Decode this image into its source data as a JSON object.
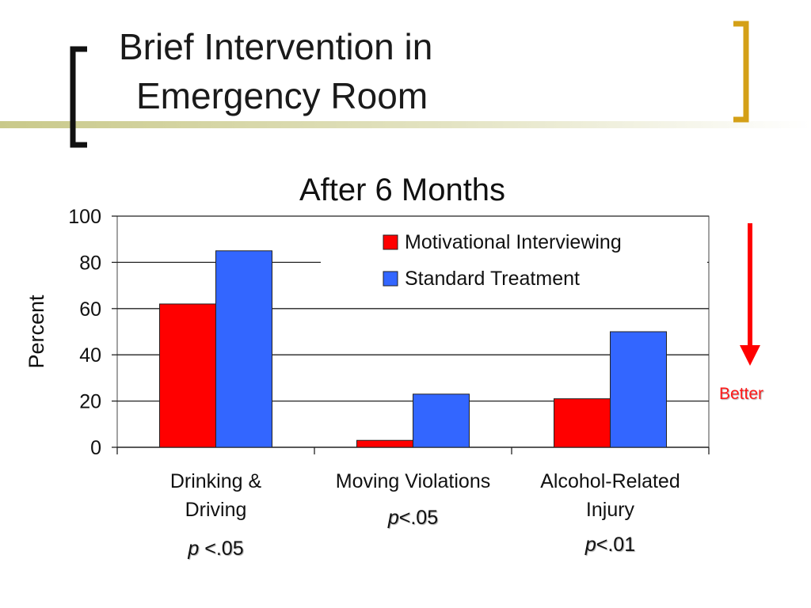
{
  "slide": {
    "title_line1": "Brief Intervention in",
    "title_line2": "Emergency Room",
    "accent_color": "#c9c98a",
    "bracket_gold": "#d4a017"
  },
  "chart_data": {
    "type": "bar",
    "title": "After 6 Months",
    "ylabel": "Percent",
    "xlabel": "",
    "ylim": [
      0,
      100
    ],
    "yticks": [
      0,
      20,
      40,
      60,
      80,
      100
    ],
    "grid": true,
    "legend_position": "top-right",
    "categories": [
      "Drinking & Driving",
      "Moving Violations",
      "Alcohol-Related Injury"
    ],
    "category_lines": [
      [
        "Drinking &",
        "Driving"
      ],
      [
        "Moving Violations"
      ],
      [
        "Alcohol-Related",
        "Injury"
      ]
    ],
    "series": [
      {
        "name": "Motivational Interviewing",
        "color": "#ff0000",
        "values": [
          62,
          3,
          21
        ]
      },
      {
        "name": "Standard Treatment",
        "color": "#3366ff",
        "values": [
          85,
          23,
          50
        ]
      }
    ],
    "p_values": [
      {
        "p": "p",
        "rest": " <.05"
      },
      {
        "p": "p",
        "rest": "<.05"
      },
      {
        "p": "p",
        "rest": "<.01"
      }
    ]
  },
  "annotation": {
    "better_label": "Better",
    "arrow_color": "#ff0000"
  }
}
